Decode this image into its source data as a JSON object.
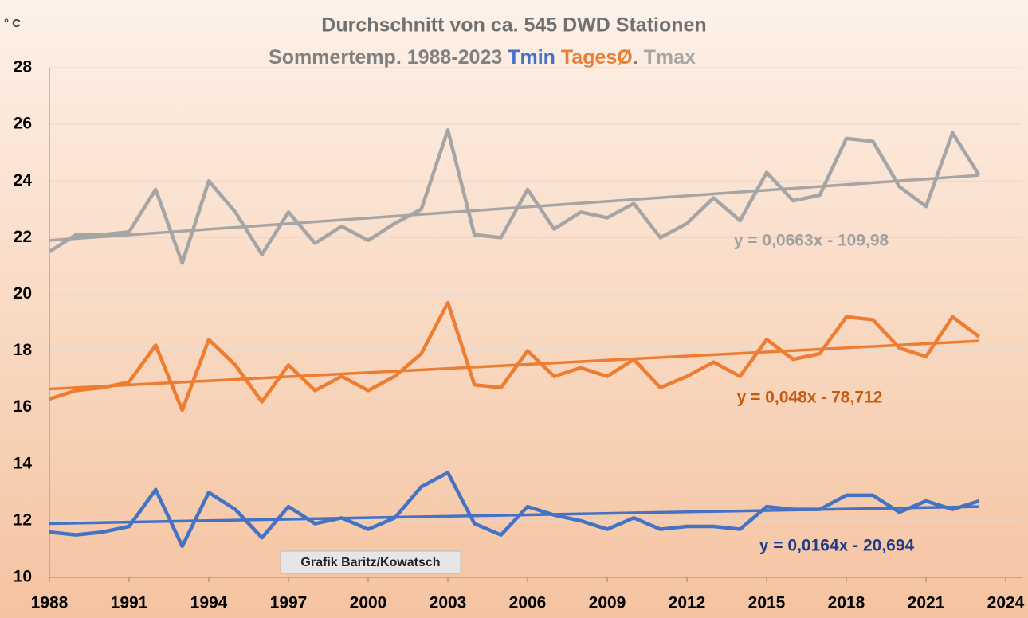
{
  "chart_data": {
    "type": "line",
    "title": "Durchschnitt von ca. 545 DWD Stationen",
    "subtitle": "Sommertemp. 1988-2023",
    "subtitle_separator": ".",
    "y_label": "° C",
    "annotation": "Grafik Baritz/Kowatsch",
    "x": [
      1988,
      1989,
      1990,
      1991,
      1992,
      1993,
      1994,
      1995,
      1996,
      1997,
      1998,
      1999,
      2000,
      2001,
      2002,
      2003,
      2004,
      2005,
      2006,
      2007,
      2008,
      2009,
      2010,
      2011,
      2012,
      2013,
      2014,
      2015,
      2016,
      2017,
      2018,
      2019,
      2020,
      2021,
      2022,
      2023
    ],
    "trend_x": [
      1988,
      2023
    ],
    "series": [
      {
        "name": "Tmin",
        "color": "#4472c4",
        "trend_label": "y = 0,0164x - 20,694",
        "trend_label_color": "#1f3c88",
        "trend": [
          11.9,
          12.5
        ],
        "values": [
          11.6,
          11.5,
          11.6,
          11.8,
          13.1,
          11.1,
          13.0,
          12.4,
          11.4,
          12.5,
          11.9,
          12.1,
          11.7,
          12.1,
          13.2,
          13.7,
          11.9,
          11.5,
          12.5,
          12.2,
          12.0,
          11.7,
          12.1,
          11.7,
          11.8,
          11.8,
          11.7,
          12.5,
          12.4,
          12.4,
          12.9,
          12.9,
          12.3,
          12.7,
          12.4,
          12.7
        ]
      },
      {
        "name": "TagesØ",
        "color": "#ed7d31",
        "trend_label": "y = 0,048x - 78,712",
        "trend_label_color": "#c55a11",
        "trend": [
          16.65,
          18.35
        ],
        "values": [
          16.3,
          16.6,
          16.7,
          16.9,
          18.2,
          15.9,
          18.4,
          17.5,
          16.2,
          17.5,
          16.6,
          17.1,
          16.6,
          17.1,
          17.9,
          19.7,
          16.8,
          16.7,
          18.0,
          17.1,
          17.4,
          17.1,
          17.7,
          16.7,
          17.1,
          17.6,
          17.1,
          18.4,
          17.7,
          17.9,
          19.2,
          19.1,
          18.1,
          17.8,
          19.2,
          18.5
        ]
      },
      {
        "name": "Tmax",
        "color": "#a5a5a5",
        "trend_label": "y = 0,0663x - 109,98",
        "trend_label_color": "#a0a0a0",
        "trend": [
          21.9,
          24.2
        ],
        "values": [
          21.5,
          22.1,
          22.1,
          22.2,
          23.7,
          21.1,
          24.0,
          22.9,
          21.4,
          22.9,
          21.8,
          22.4,
          21.9,
          22.5,
          23.0,
          25.8,
          22.1,
          22.0,
          23.7,
          22.3,
          22.9,
          22.7,
          23.2,
          22.0,
          22.5,
          23.4,
          22.6,
          24.3,
          23.3,
          23.5,
          25.5,
          25.4,
          23.8,
          23.1,
          25.7,
          24.2
        ]
      }
    ],
    "xlim": [
      1988,
      2024
    ],
    "xticks": [
      1988,
      1991,
      1994,
      1997,
      2000,
      2003,
      2006,
      2009,
      2012,
      2015,
      2018,
      2021,
      2024
    ],
    "ylim": [
      10,
      28
    ],
    "yticks": [
      10,
      12,
      14,
      16,
      18,
      20,
      22,
      24,
      26,
      28
    ],
    "grid": true
  }
}
